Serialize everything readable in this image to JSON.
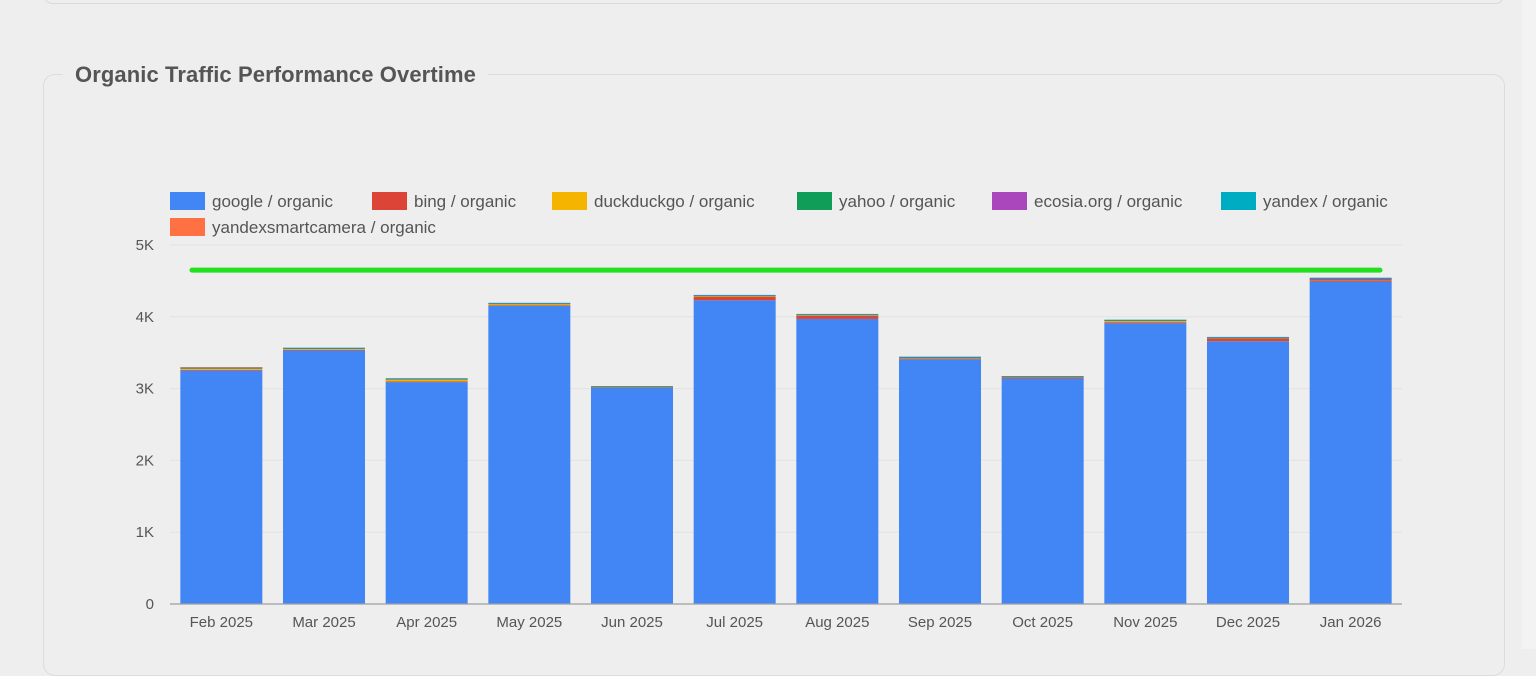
{
  "card": {
    "title": "Organic Traffic Performance Overtime"
  },
  "chart_data": {
    "type": "bar",
    "stacked": true,
    "title": "Organic Traffic Performance Overtime",
    "xlabel": "",
    "ylabel": "",
    "ylim": [
      0,
      5000
    ],
    "yticks": [
      0,
      1000,
      2000,
      3000,
      4000,
      5000
    ],
    "ytick_labels": [
      "0",
      "1K",
      "2K",
      "3K",
      "4K",
      "5K"
    ],
    "grid": true,
    "legend_position": "top",
    "categories": [
      "Feb 2025",
      "Mar 2025",
      "Apr 2025",
      "May 2025",
      "Jun 2025",
      "Jul 2025",
      "Aug 2025",
      "Sep 2025",
      "Oct 2025",
      "Nov 2025",
      "Dec 2025",
      "Jan 2026"
    ],
    "series": [
      {
        "name": "google / organic",
        "color": "#4285f4",
        "values": [
          3250,
          3530,
          3090,
          4150,
          3010,
          4230,
          3970,
          3410,
          3140,
          3910,
          3660,
          4490
        ]
      },
      {
        "name": "bing / organic",
        "color": "#db4437",
        "values": [
          10,
          10,
          10,
          10,
          5,
          50,
          45,
          10,
          15,
          15,
          40,
          20
        ]
      },
      {
        "name": "duckduckgo / organic",
        "color": "#f4b400",
        "values": [
          15,
          10,
          25,
          15,
          5,
          10,
          10,
          10,
          5,
          15,
          5,
          5
        ]
      },
      {
        "name": "yahoo / organic",
        "color": "#0f9d58",
        "values": [
          10,
          10,
          10,
          10,
          5,
          5,
          5,
          5,
          5,
          10,
          5,
          5
        ]
      },
      {
        "name": "ecosia.org / organic",
        "color": "#ab47bc",
        "values": [
          5,
          5,
          5,
          5,
          5,
          5,
          5,
          5,
          5,
          5,
          5,
          20
        ]
      },
      {
        "name": "yandex / organic",
        "color": "#00acc1",
        "values": [
          5,
          5,
          5,
          5,
          5,
          5,
          5,
          5,
          5,
          5,
          5,
          5
        ]
      },
      {
        "name": "yandexsmartcamera / organic",
        "color": "#ff7043",
        "values": [
          5,
          0,
          0,
          0,
          0,
          0,
          0,
          0,
          0,
          0,
          0,
          0
        ]
      }
    ],
    "reference_line": {
      "value": 4650,
      "color": "#22e01e"
    }
  }
}
